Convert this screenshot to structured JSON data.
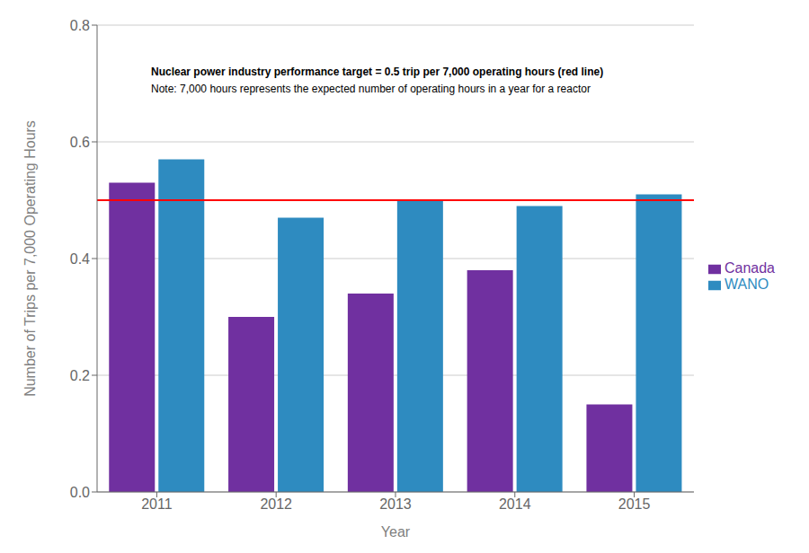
{
  "chart_data": {
    "type": "bar",
    "xlabel": "Year",
    "ylabel": "Number of Trips per 7,000 Operating Hours",
    "categories": [
      "2011",
      "2012",
      "2013",
      "2014",
      "2015"
    ],
    "series": [
      {
        "name": "Canada",
        "color": "#7030A0",
        "values": [
          0.53,
          0.3,
          0.34,
          0.38,
          0.15
        ]
      },
      {
        "name": "WANO",
        "color": "#2E8BC0",
        "values": [
          0.57,
          0.47,
          0.5,
          0.49,
          0.51
        ]
      }
    ],
    "target": {
      "value": 0.5,
      "color": "#FF0000"
    },
    "annotations": [
      "Nuclear power industry performance target = 0.5 trip per 7,000 operating hours (red line)",
      "Note: 7,000 hours represents the expected number of operating hours in a year for a reactor"
    ],
    "ylim": [
      0.0,
      0.8
    ],
    "yticks": [
      {
        "value": 0.0,
        "label": "0.0"
      },
      0.2,
      0.4,
      0.6,
      0.8
    ],
    "grid": true,
    "legend": "right"
  }
}
